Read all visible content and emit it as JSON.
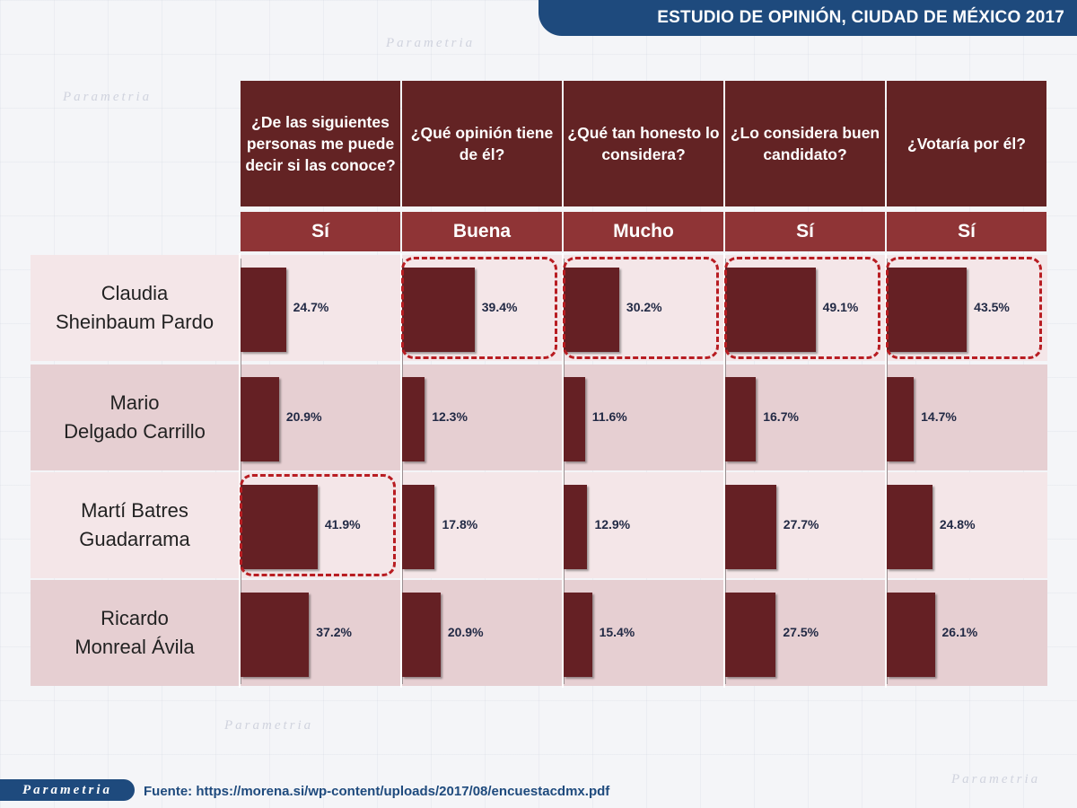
{
  "header": {
    "title": "ESTUDIO DE OPINIÓN, CIUDAD DE MÉXICO 2017"
  },
  "footer": {
    "brand": "Parametria",
    "source": "Fuente: https://morena.si/wp-content/uploads/2017/08/encuestacdmx.pdf"
  },
  "watermark": "Parametria",
  "colors": {
    "bar": "#652024",
    "header": "#632324",
    "subheader": "#8f3436",
    "banner": "#1e4a7d",
    "highlight": "#b81d22"
  },
  "chart_data": {
    "type": "bar",
    "orientation": "horizontal",
    "unit": "%",
    "categories": [
      "Claudia\nSheinbaum Pardo",
      "Mario\nDelgado Carrillo",
      "Martí Batres\nGuadarrama",
      "Ricardo\nMonreal Ávila"
    ],
    "series": [
      {
        "question": "¿De las siguientes personas me puede decir si las conoce?",
        "answer": "Sí",
        "values": [
          24.7,
          20.9,
          41.9,
          37.2
        ],
        "labels": [
          "24.7%",
          "20.9%",
          "41.9%",
          "37.2%"
        ],
        "highlight": 2
      },
      {
        "question": "¿Qué opinión tiene de él?",
        "answer": "Buena",
        "values": [
          39.4,
          12.3,
          17.8,
          20.9
        ],
        "labels": [
          "39.4%",
          "12.3%",
          "17.8%",
          "20.9%"
        ],
        "highlight": 0
      },
      {
        "question": "¿Qué tan honesto lo considera?",
        "answer": "Mucho",
        "values": [
          30.2,
          11.6,
          12.9,
          15.4
        ],
        "labels": [
          "30.2%",
          "11.6%",
          "12.9%",
          "15.4%"
        ],
        "highlight": 0
      },
      {
        "question": "¿Lo considera buen candidato?",
        "answer": "Sí",
        "values": [
          49.1,
          16.7,
          27.7,
          27.5
        ],
        "labels": [
          "49.1%",
          "16.7%",
          "27.7%",
          "27.5%"
        ],
        "highlight": 0
      },
      {
        "question": "¿Votaría por él?",
        "answer": "Sí",
        "values": [
          43.5,
          14.7,
          24.8,
          26.1
        ],
        "labels": [
          "43.5%",
          "14.7%",
          "24.8%",
          "26.1%"
        ],
        "highlight": 0
      }
    ]
  }
}
